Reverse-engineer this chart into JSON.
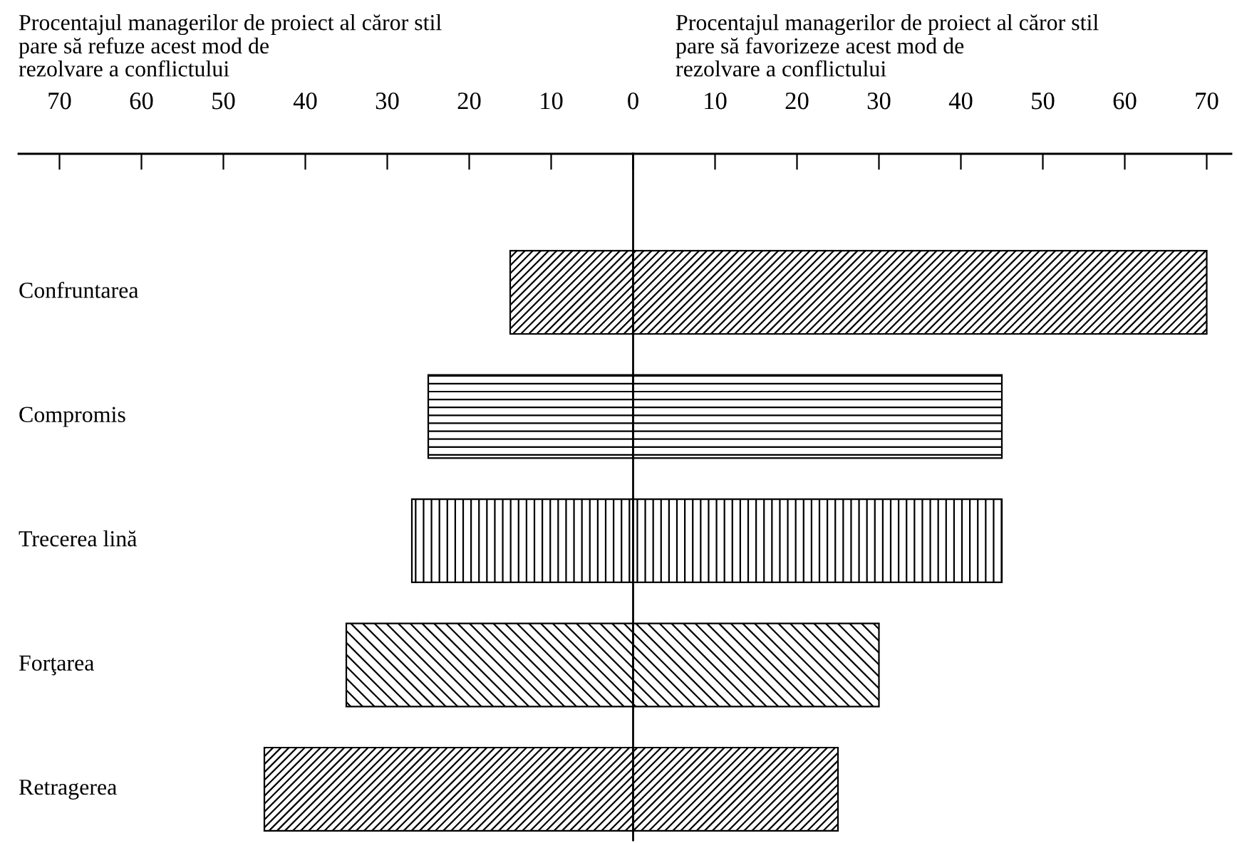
{
  "chart_data": {
    "type": "bar",
    "orientation": "horizontal",
    "stacked": true,
    "categories": [
      "Confruntarea",
      "Compromis",
      "Trecerea lină",
      "Forţarea",
      "Retragerea"
    ],
    "series": [
      {
        "color": "#000000",
        "values": [
          -15,
          -25,
          -27,
          -35,
          -45
        ]
      },
      {
        "color": "#000000",
        "values": [
          70,
          45,
          45,
          30,
          25
        ]
      }
    ],
    "xlim": [
      -75,
      73
    ],
    "xticks": [
      {
        "value": -70,
        "label": "70"
      },
      {
        "value": -60,
        "label": "60"
      },
      {
        "value": -50,
        "label": "50"
      },
      {
        "value": -40,
        "label": "40"
      },
      {
        "value": -30,
        "label": "30"
      },
      {
        "value": -20,
        "label": "20"
      },
      {
        "value": -10,
        "label": "10"
      },
      0,
      10,
      20,
      30,
      40,
      50,
      60,
      70
    ],
    "annotations": [
      "Procentajul managerilor de proiect al căror stil\npare să refuze acest mod de\nrezolvare a conflictului",
      "Procentajul managerilor de proiect al căror stil\npare să favorizeze acest mod de\nrezolvare a conflictului"
    ],
    "legend": false
  }
}
